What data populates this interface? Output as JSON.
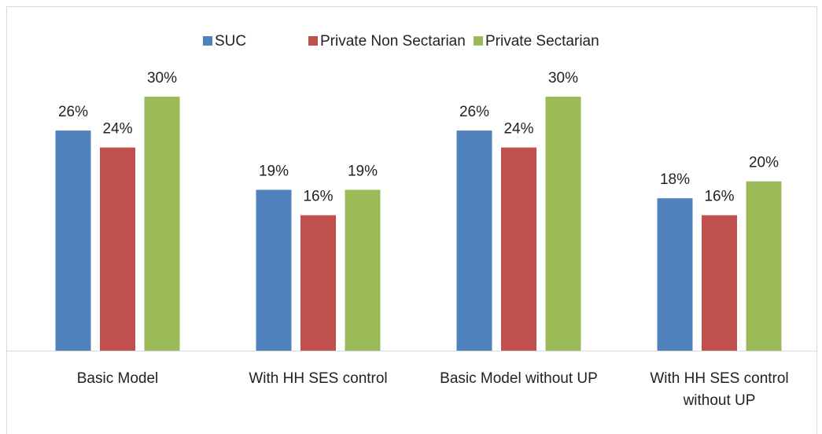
{
  "chart_data": {
    "type": "bar",
    "categories": [
      "Basic Model",
      "With HH SES control",
      "Basic Model without UP",
      "With HH SES control without UP"
    ],
    "series": [
      {
        "name": "SUC",
        "color": "#4f81bd",
        "values": [
          26,
          19,
          26,
          18
        ],
        "value_labels": [
          "26%",
          "19%",
          "26%",
          "18%"
        ]
      },
      {
        "name": "Private Non Sectarian",
        "color": "#c0504d",
        "values": [
          24,
          16,
          24,
          16
        ],
        "value_labels": [
          "24%",
          "16%",
          "24%",
          "16%"
        ]
      },
      {
        "name": "Private Sectarian",
        "color": "#9bbb59",
        "values": [
          30,
          19,
          30,
          20
        ],
        "value_labels": [
          "30%",
          "19%",
          "30%",
          "20%"
        ]
      }
    ],
    "legend": "top"
  }
}
